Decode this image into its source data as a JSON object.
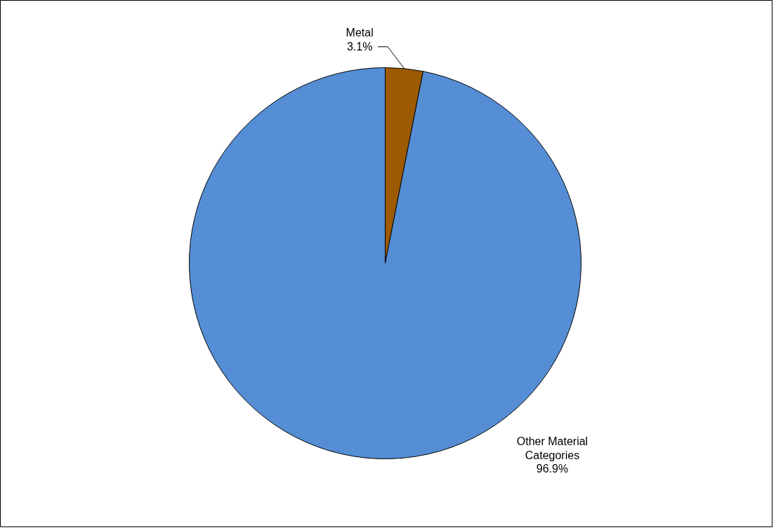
{
  "chart_data": {
    "type": "pie",
    "categories": [
      "Metal",
      "Other Material Categories"
    ],
    "values": [
      3.1,
      96.9
    ],
    "colors": [
      "#9c5b00",
      "#558ed5"
    ],
    "value_labels": [
      "3.1%",
      "96.9%"
    ]
  }
}
